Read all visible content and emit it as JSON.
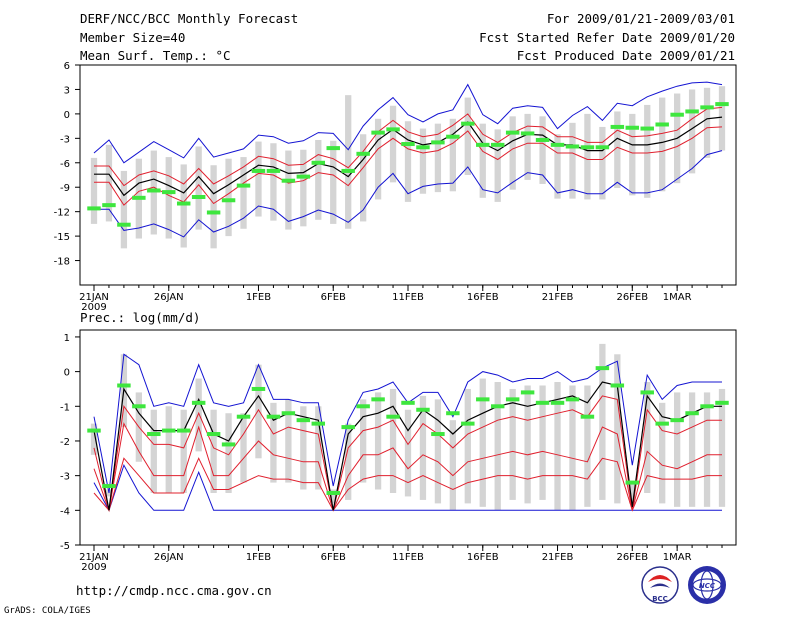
{
  "header": {
    "title": "DERF/NCC/BCC Monthly Forecast",
    "member_size": "Member Size=40",
    "variable": "Mean Surf. Temp.: °C",
    "period": "For 2009/01/21-2009/03/01",
    "fcst_started": "Fcst Started Refer Date 2009/01/20",
    "fcst_produced": "Fcst Produced Date 2009/01/21"
  },
  "footer": {
    "url": "http://cmdp.ncc.cma.gov.cn",
    "grads": "GrADS: COLA/IGES"
  },
  "logos": {
    "bcc": "BCC",
    "ncc": "NCC"
  },
  "colors": {
    "band_gray": "#d4d4d4",
    "mean_black": "#000000",
    "spread_red": "#e0202e",
    "envelope_blue": "#1414d2",
    "obs_green": "#3ee63e"
  },
  "chart_data": [
    {
      "type": "line",
      "name": "temperature",
      "title": "Mean Surf. Temp.: °C",
      "ylim": [
        -21,
        6
      ],
      "yticks": [
        6,
        3,
        0,
        -3,
        -6,
        -9,
        -12,
        -15,
        -18
      ],
      "xticks": [
        {
          "day": 0,
          "label": "21JAN",
          "sub": "2009"
        },
        {
          "day": 5,
          "label": "26JAN"
        },
        {
          "day": 11,
          "label": "1FEB"
        },
        {
          "day": 16,
          "label": "6FEB"
        },
        {
          "day": 21,
          "label": "11FEB"
        },
        {
          "day": 26,
          "label": "16FEB"
        },
        {
          "day": 31,
          "label": "21FEB"
        },
        {
          "day": 36,
          "label": "26FEB"
        },
        {
          "day": 39,
          "label": "1MAR"
        }
      ],
      "series": {
        "mean": [
          -7.4,
          -7.4,
          -10,
          -8.5,
          -8,
          -8.8,
          -9.7,
          -7.7,
          -9.8,
          -8.7,
          -7.5,
          -6.3,
          -6.5,
          -7.3,
          -7.2,
          -6.1,
          -6.5,
          -7.7,
          -5.6,
          -3.2,
          -1.9,
          -3.2,
          -3.8,
          -3.5,
          -2.5,
          -1,
          -3.6,
          -4.5,
          -3.3,
          -2.5,
          -2.6,
          -3.8,
          -3.8,
          -4.5,
          -4.5,
          -3,
          -3.8,
          -3.8,
          -3.5,
          -3,
          -1.8,
          -0.6,
          -0.4
        ],
        "lower_spread": [
          -8.4,
          -8.4,
          -11.2,
          -9.5,
          -9,
          -10,
          -10.8,
          -8.7,
          -11,
          -9.8,
          -8.5,
          -7.3,
          -7.5,
          -8.5,
          -8.2,
          -7.2,
          -7.5,
          -8.8,
          -6.6,
          -4.3,
          -3,
          -4.3,
          -4.8,
          -4.5,
          -3.6,
          -2.1,
          -4.6,
          -5.6,
          -4.3,
          -3.6,
          -3.6,
          -4.8,
          -4.8,
          -5.6,
          -5.6,
          -4.1,
          -4.8,
          -4.8,
          -4.6,
          -4,
          -3,
          -1.7,
          -1.6
        ],
        "upper_spread": [
          -6.4,
          -6.4,
          -8.8,
          -7.5,
          -7,
          -7.6,
          -8.6,
          -6.7,
          -8.6,
          -7.6,
          -6.5,
          -5.2,
          -5.5,
          -6.3,
          -6.2,
          -5,
          -5.5,
          -6.6,
          -4.6,
          -2.2,
          -0.8,
          -2.2,
          -2.8,
          -2.5,
          -1.4,
          0,
          -2.5,
          -3.5,
          -2.3,
          -1.5,
          -1.6,
          -2.8,
          -2.8,
          -3.5,
          -3.5,
          -2,
          -2.8,
          -2.7,
          -2.4,
          -2,
          -0.6,
          0.6,
          0.8
        ],
        "min": [
          -11.7,
          -11.7,
          -14.3,
          -14,
          -13.5,
          -14.2,
          -15.1,
          -13,
          -14.5,
          -13.8,
          -12.8,
          -11.3,
          -11.7,
          -13.2,
          -12.6,
          -11.8,
          -12.3,
          -13.3,
          -11.8,
          -9,
          -7.3,
          -9.8,
          -8.9,
          -8.6,
          -8.5,
          -6.5,
          -9.3,
          -9.7,
          -8.4,
          -7.2,
          -7.5,
          -9.7,
          -9.3,
          -9.8,
          -9.8,
          -8.4,
          -9.7,
          -9.7,
          -9.3,
          -8,
          -6.7,
          -5,
          -4.5
        ],
        "max": [
          -4.8,
          -3.2,
          -6,
          -4.7,
          -3.4,
          -4.4,
          -5.4,
          -3,
          -5.3,
          -4.8,
          -4.3,
          -2.6,
          -2.8,
          -3.6,
          -3.3,
          -2.3,
          -2.4,
          -4.4,
          -1.5,
          0.5,
          2,
          -0.1,
          -1,
          0,
          0.5,
          3.6,
          -0.1,
          -1.2,
          0.7,
          1,
          0.8,
          -1.8,
          -0.2,
          0.9,
          -0.8,
          1.3,
          1,
          2.1,
          2.8,
          3.4,
          3.8,
          3.9,
          3.6
        ],
        "box_low": [
          -13.5,
          -13.2,
          -16.5,
          -15.3,
          -14.8,
          -15.3,
          -16.4,
          -14.2,
          -16.5,
          -15,
          -14.1,
          -12.6,
          -13.1,
          -14.2,
          -13.8,
          -13,
          -13.5,
          -14.1,
          -13.2,
          -10.5,
          -8.4,
          -10.8,
          -9.8,
          -9.6,
          -9.5,
          -7.5,
          -10.3,
          -10.8,
          -9.3,
          -8.1,
          -8.6,
          -10.4,
          -10.4,
          -10.5,
          -10.5,
          -9.1,
          -10,
          -10.3,
          -9.5,
          -8.5,
          -7.3,
          -5.4,
          -4.5
        ],
        "box_high": [
          -5.4,
          -3.8,
          -7,
          -5.5,
          -4.5,
          -5.3,
          -6.2,
          -4,
          -6.3,
          -5.5,
          -5.3,
          -3.4,
          -3.6,
          -4.5,
          -4.4,
          -3.2,
          -3.3,
          2.3,
          -2.5,
          -0.6,
          1,
          -0.9,
          -1.8,
          -1.2,
          -0.6,
          2,
          -1.2,
          -1.9,
          -0.3,
          0,
          -0.3,
          -2.5,
          -1.1,
          0,
          -1.6,
          0.3,
          0,
          1.1,
          2,
          2.5,
          3,
          3.2,
          3.4
        ],
        "obs": [
          -11.6,
          -11.2,
          -13.6,
          -10.3,
          -9.4,
          -9.6,
          -11,
          -10.2,
          -12.1,
          -10.6,
          -8.8,
          -7,
          -7,
          -8.2,
          -7.7,
          -6,
          -4.2,
          -7,
          -4.9,
          -2.3,
          -1.9,
          -3.7,
          -4.1,
          -3.5,
          -2.8,
          -1.2,
          -3.8,
          -3.8,
          -2.3,
          -2.4,
          -3.2,
          -3.8,
          -4,
          -4.1,
          -4.1,
          -1.6,
          -1.7,
          -1.8,
          -1.3,
          -0.1,
          0.3,
          0.8,
          1.2
        ]
      }
    },
    {
      "type": "line",
      "name": "precipitation",
      "title": "Prec.: log(mm/d)",
      "ylim": [
        -5,
        1.2
      ],
      "yticks": [
        1,
        0,
        -1,
        -2,
        -3,
        -4,
        -5
      ],
      "xticks": [
        {
          "day": 0,
          "label": "21JAN",
          "sub": "2009"
        },
        {
          "day": 5,
          "label": "26JAN"
        },
        {
          "day": 11,
          "label": "1FEB"
        },
        {
          "day": 16,
          "label": "6FEB"
        },
        {
          "day": 21,
          "label": "11FEB"
        },
        {
          "day": 26,
          "label": "16FEB"
        },
        {
          "day": 31,
          "label": "21FEB"
        },
        {
          "day": 36,
          "label": "26FEB"
        },
        {
          "day": 39,
          "label": "1MAR"
        }
      ],
      "series": {
        "mean": [
          -1.7,
          -4,
          -0.5,
          -1.2,
          -1.7,
          -1.7,
          -1.7,
          -0.8,
          -1.8,
          -2,
          -1.3,
          -0.7,
          -1.4,
          -1.2,
          -1.3,
          -1.4,
          -4,
          -1.8,
          -1.3,
          -1.2,
          -1,
          -1.7,
          -1.1,
          -1.4,
          -1.8,
          -1.4,
          -1.2,
          -1,
          -0.9,
          -1,
          -0.9,
          -0.8,
          -0.7,
          -0.9,
          -0.3,
          -0.4,
          -3.9,
          -0.7,
          -1.3,
          -1.4,
          -1.2,
          -1,
          -1
        ],
        "lower_spread": [
          -2.2,
          -4,
          -1,
          -1.6,
          -2.1,
          -2.1,
          -2.2,
          -1.2,
          -2.2,
          -2.4,
          -1.8,
          -1.1,
          -1.8,
          -1.6,
          -1.7,
          -1.8,
          -4,
          -2.2,
          -1.7,
          -1.6,
          -1.4,
          -2.1,
          -1.5,
          -1.8,
          -2.2,
          -1.8,
          -1.6,
          -1.4,
          -1.3,
          -1.4,
          -1.3,
          -1.2,
          -1.1,
          -1.3,
          -0.7,
          -0.8,
          -4,
          -1.1,
          -1.7,
          -1.8,
          -1.6,
          -1.4,
          -1.4
        ],
        "lower2": [
          -2.8,
          -4,
          -1.5,
          -2.3,
          -3,
          -3,
          -3,
          -1.6,
          -3,
          -3,
          -2.5,
          -2,
          -2.4,
          -2.5,
          -2.6,
          -2.6,
          -4,
          -3,
          -2.4,
          -2.4,
          -2.2,
          -2.8,
          -2.4,
          -2.6,
          -3,
          -2.6,
          -2.5,
          -2.4,
          -2.3,
          -2.4,
          -2.3,
          -2.4,
          -2.5,
          -2.6,
          -1.6,
          -1.8,
          -4,
          -2.3,
          -2.7,
          -2.8,
          -2.6,
          -2.4,
          -2.4
        ],
        "lowest": [
          -3.5,
          -4,
          -2.5,
          -3,
          -3.5,
          -3.5,
          -3.5,
          -2.5,
          -3.4,
          -3.4,
          -3.2,
          -3,
          -3.1,
          -3.1,
          -3.2,
          -3.2,
          -4,
          -3.4,
          -3.1,
          -3,
          -3,
          -3.2,
          -3,
          -3.2,
          -3.4,
          -3.2,
          -3.1,
          -3,
          -3,
          -3.1,
          -3,
          -3,
          -3,
          -3.1,
          -2.5,
          -2.6,
          -4,
          -3,
          -3.1,
          -3.1,
          -3.1,
          -3,
          -3
        ],
        "min": [
          -3.2,
          -4,
          -2.7,
          -3.5,
          -4,
          -4,
          -4,
          -2.9,
          -4,
          -4,
          -4,
          -4,
          -4,
          -4,
          -4,
          -4,
          -4,
          -4,
          -4,
          -4,
          -4,
          -4,
          -4,
          -4,
          -4,
          -4,
          -4,
          -4,
          -4,
          -4,
          -4,
          -4,
          -4,
          -4,
          -4,
          -4,
          -4,
          -4,
          -4,
          -4,
          -4,
          -4,
          -4
        ],
        "max": [
          -1.3,
          -3.5,
          0.5,
          0.2,
          -1,
          -0.9,
          -1,
          0.2,
          -0.9,
          -1,
          -0.9,
          0.2,
          -0.8,
          -0.8,
          -0.9,
          -0.9,
          -3.3,
          -1.4,
          -0.6,
          -0.5,
          -0.3,
          -0.9,
          -0.6,
          -0.6,
          -1.3,
          -0.3,
          0,
          -0.1,
          -0.3,
          -0.2,
          -0.2,
          0,
          -0.3,
          -0.2,
          0.1,
          0.3,
          -2.7,
          -0.1,
          -0.8,
          -0.4,
          -0.3,
          -0.3,
          -0.3
        ],
        "box_low": [
          -2.4,
          -3.6,
          -1.6,
          -2.6,
          -3.5,
          -3.5,
          -3.5,
          -2.3,
          -3.5,
          -3.5,
          -3.2,
          -2.5,
          -3.2,
          -3.2,
          -3.4,
          -3.4,
          -3.8,
          -3.7,
          -3.2,
          -3.4,
          -3.5,
          -3.6,
          -3.7,
          -3.8,
          -4,
          -3.8,
          -3.9,
          -4,
          -3.7,
          -3.8,
          -3.7,
          -4,
          -4,
          -3.9,
          -3.7,
          -3.8,
          -3.8,
          -3.5,
          -3.8,
          -3.9,
          -3.9,
          -3.9,
          -3.9
        ],
        "box_high": [
          -1.5,
          -3.4,
          0.5,
          -0.6,
          -1.1,
          -1,
          -1.1,
          -0.2,
          -1.1,
          -1.2,
          -1.2,
          0.2,
          -0.9,
          -0.8,
          -1,
          -1,
          -3.4,
          -1.5,
          -0.8,
          -0.6,
          -0.5,
          -1.1,
          -0.7,
          -0.8,
          -1.4,
          -0.5,
          -0.2,
          -0.3,
          -0.5,
          -0.4,
          -0.4,
          -0.3,
          -0.4,
          -0.4,
          0.8,
          0.5,
          -3.2,
          -0.3,
          -0.9,
          -0.6,
          -0.6,
          -0.6,
          -0.5
        ],
        "obs": [
          -1.7,
          -3.3,
          -0.4,
          -1,
          -1.8,
          -1.7,
          -1.7,
          -0.9,
          -1.8,
          -2.1,
          -1.3,
          -0.5,
          -1.3,
          -1.2,
          -1.4,
          -1.5,
          -3.5,
          -1.6,
          -1,
          -0.8,
          -1.3,
          -0.9,
          -1.1,
          -1.8,
          -1.2,
          -1.5,
          -0.8,
          -1,
          -0.8,
          -0.6,
          -0.9,
          -0.9,
          -0.8,
          -1.3,
          0.1,
          -0.4,
          -3.2,
          -0.6,
          -1.5,
          -1.4,
          -1.2,
          -1,
          -0.9
        ]
      }
    }
  ]
}
